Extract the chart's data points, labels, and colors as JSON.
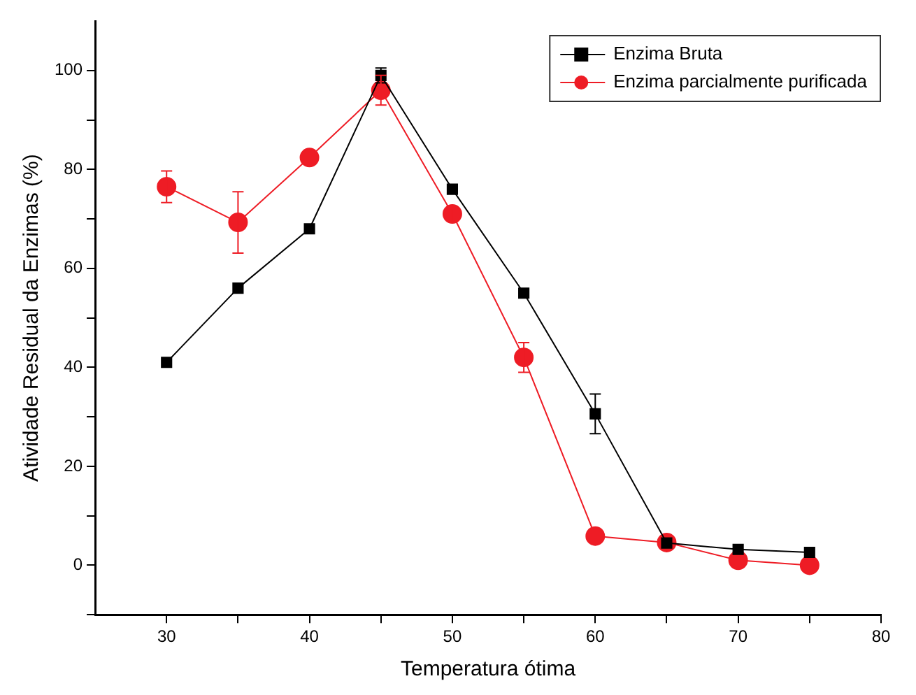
{
  "chart_data": {
    "type": "line",
    "xlabel": "Temperatura ótima",
    "ylabel": "Atividade Residual da Enzimas (%)",
    "x": [
      30,
      35,
      40,
      45,
      50,
      55,
      60,
      65,
      70,
      75
    ],
    "xlim": [
      25,
      80
    ],
    "xticks": [
      30,
      {
        "value": 35,
        "label": null
      },
      40,
      {
        "value": 45,
        "label": null
      },
      50,
      {
        "value": 55,
        "label": null
      },
      60,
      {
        "value": 65,
        "label": null
      },
      70,
      {
        "value": 75,
        "label": null
      },
      80
    ],
    "ylim": [
      -10,
      110
    ],
    "yticks": [
      {
        "value": -10,
        "label": null
      },
      0,
      {
        "value": 10,
        "label": null
      },
      20,
      {
        "value": 30,
        "label": null
      },
      40,
      {
        "value": 50,
        "label": null
      },
      60,
      {
        "value": 70,
        "label": null
      },
      80,
      {
        "value": 90,
        "label": null
      },
      100
    ],
    "grid": false,
    "legend": "top right",
    "line_style": "solid",
    "series": [
      {
        "name": "Enzima Bruta",
        "color": "#000000",
        "marker": "square",
        "values": [
          41,
          56,
          68,
          99,
          76,
          55,
          30.6,
          4.5,
          3.2,
          2.6
        ],
        "errors": [
          null,
          null,
          null,
          1.5,
          null,
          null,
          4,
          null,
          null,
          null
        ]
      },
      {
        "name": "Enzima parcialmente purificada",
        "color": "#ee1c25",
        "marker": "circle",
        "values": [
          76.5,
          69.3,
          82.4,
          96,
          71,
          42,
          5.9,
          4.6,
          1,
          0
        ],
        "errors": [
          3.2,
          6.2,
          null,
          3,
          1.5,
          3,
          null,
          null,
          null,
          null
        ]
      }
    ]
  }
}
